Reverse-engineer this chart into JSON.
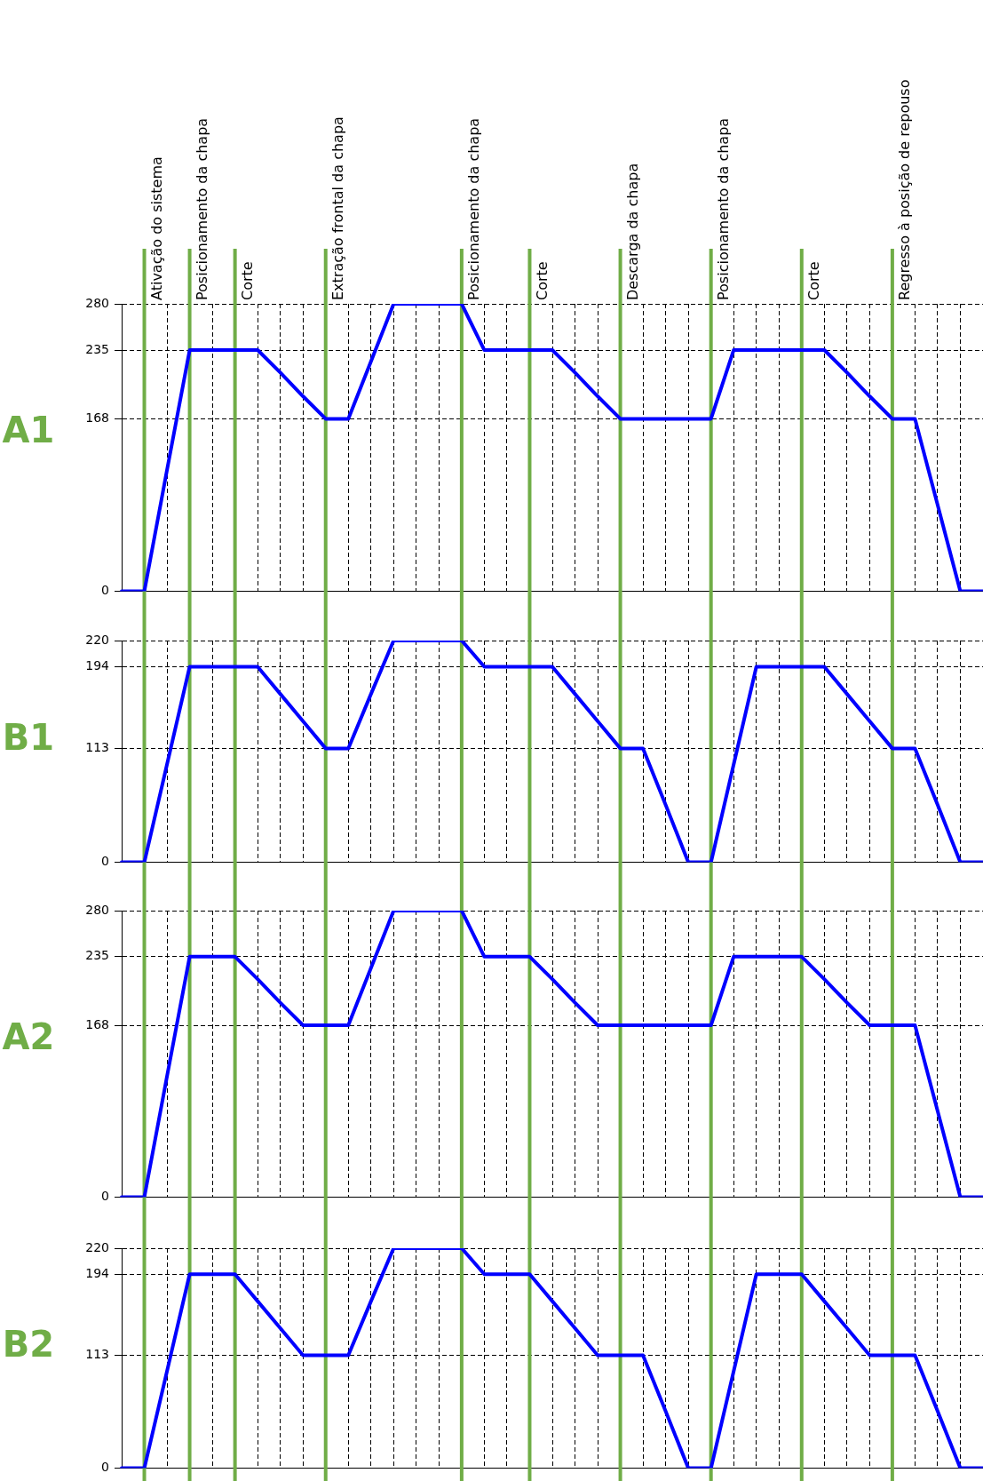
{
  "chart_data": [
    {
      "type": "line",
      "ylabel": "A1",
      "ylim": [
        0,
        280
      ],
      "yticks": [
        0,
        168,
        235,
        280
      ],
      "tick_labels": "y",
      "grid": true,
      "legend": false,
      "marker": "none",
      "line_style": "solid",
      "annotations": [
        "Ativação do sistema",
        "Posicionamento da chapa",
        "Corte",
        "Extração frontal da chapa",
        "Posicionamento da chapa",
        "Corte",
        "Descarga da chapa",
        "Posicionamento da chapa",
        "Corte",
        "Regresso à posição de repouso"
      ],
      "categories": [
        null,
        null,
        null,
        null,
        null,
        null,
        null,
        null,
        null,
        null,
        null,
        null,
        null,
        null,
        null,
        null,
        null,
        null,
        null,
        null,
        null,
        null,
        null,
        null,
        null,
        null,
        null,
        null,
        null,
        null,
        null,
        null,
        null,
        null,
        null,
        null,
        null,
        null,
        null
      ],
      "series": [
        {
          "color": "#0000ff",
          "values": [
            0,
            0,
            118,
            235,
            235,
            235,
            235,
            213,
            190,
            168,
            168,
            224,
            280,
            280,
            280,
            280,
            235,
            235,
            235,
            235,
            213,
            190,
            168,
            168,
            168,
            168,
            168,
            235,
            235,
            235,
            235,
            235,
            213,
            190,
            168,
            168,
            84,
            0,
            0
          ]
        }
      ]
    },
    {
      "type": "line",
      "ylabel": "B1",
      "ylim": [
        0,
        220
      ],
      "yticks": [
        0,
        113,
        194,
        220
      ],
      "tick_labels": "y",
      "grid": true,
      "legend": false,
      "marker": "none",
      "line_style": "solid",
      "categories": [
        null,
        null,
        null,
        null,
        null,
        null,
        null,
        null,
        null,
        null,
        null,
        null,
        null,
        null,
        null,
        null,
        null,
        null,
        null,
        null,
        null,
        null,
        null,
        null,
        null,
        null,
        null,
        null,
        null,
        null,
        null,
        null,
        null,
        null,
        null,
        null,
        null,
        null,
        null
      ],
      "series": [
        {
          "color": "#0000ff",
          "values": [
            0,
            0,
            97,
            194,
            194,
            194,
            194,
            167,
            140,
            113,
            113,
            167,
            220,
            220,
            220,
            220,
            194,
            194,
            194,
            194,
            167,
            140,
            113,
            113,
            57,
            0,
            0,
            97,
            194,
            194,
            194,
            194,
            167,
            140,
            113,
            113,
            57,
            0,
            0
          ]
        }
      ]
    },
    {
      "type": "line",
      "ylabel": "A2",
      "ylim": [
        0,
        280
      ],
      "yticks": [
        0,
        168,
        235,
        280
      ],
      "tick_labels": "y",
      "grid": true,
      "legend": false,
      "marker": "none",
      "line_style": "solid",
      "categories": [
        null,
        null,
        null,
        null,
        null,
        null,
        null,
        null,
        null,
        null,
        null,
        null,
        null,
        null,
        null,
        null,
        null,
        null,
        null,
        null,
        null,
        null,
        null,
        null,
        null,
        null,
        null,
        null,
        null,
        null,
        null,
        null,
        null,
        null,
        null,
        null,
        null,
        null,
        null
      ],
      "series": [
        {
          "color": "#0000ff",
          "values": [
            0,
            0,
            118,
            235,
            235,
            235,
            213,
            190,
            168,
            168,
            168,
            224,
            280,
            280,
            280,
            280,
            235,
            235,
            235,
            213,
            190,
            168,
            168,
            168,
            168,
            168,
            168,
            235,
            235,
            235,
            235,
            213,
            190,
            168,
            168,
            168,
            84,
            0,
            0
          ]
        }
      ]
    },
    {
      "type": "line",
      "ylabel": "B2",
      "ylim": [
        0,
        220
      ],
      "yticks": [
        0,
        113,
        194,
        220
      ],
      "tick_labels": "y",
      "grid": true,
      "legend": false,
      "marker": "none",
      "line_style": "solid",
      "categories": [
        null,
        null,
        null,
        null,
        null,
        null,
        null,
        null,
        null,
        null,
        null,
        null,
        null,
        null,
        null,
        null,
        null,
        null,
        null,
        null,
        null,
        null,
        null,
        null,
        null,
        null,
        null,
        null,
        null,
        null,
        null,
        null,
        null,
        null,
        null,
        null,
        null,
        null,
        null
      ],
      "series": [
        {
          "color": "#0000ff",
          "values": [
            0,
            0,
            97,
            194,
            194,
            194,
            167,
            140,
            113,
            113,
            113,
            167,
            220,
            220,
            220,
            220,
            194,
            194,
            194,
            167,
            140,
            113,
            113,
            113,
            57,
            0,
            0,
            97,
            194,
            194,
            194,
            167,
            140,
            113,
            113,
            113,
            57,
            0,
            0
          ]
        }
      ]
    }
  ]
}
